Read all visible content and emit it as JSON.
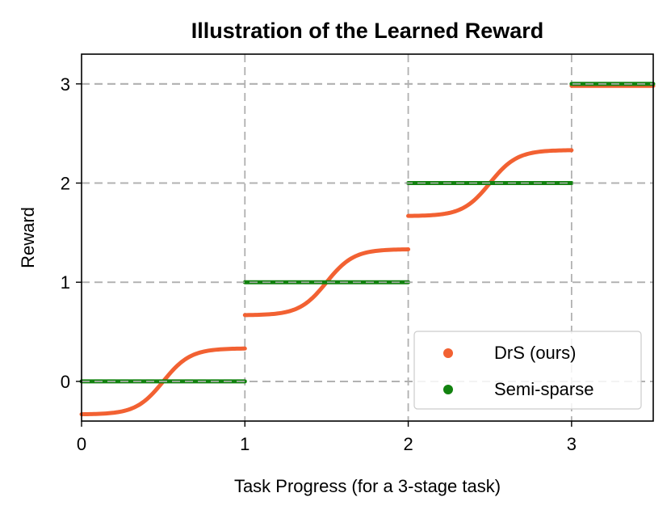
{
  "chart_data": {
    "type": "scatter",
    "title": "Illustration of the Learned Reward",
    "xlabel": "Task Progress (for a 3-stage task)",
    "ylabel": "Reward",
    "xlim": [
      0,
      3.5
    ],
    "ylim": [
      -0.4,
      3.3
    ],
    "xticks": [
      "0",
      "1",
      "2",
      "3"
    ],
    "yticks": [
      "0",
      "1",
      "2",
      "3"
    ],
    "grid": true,
    "grid_style": "dashed",
    "legend_position": "lower-right",
    "series": [
      {
        "name": "DrS (ours)",
        "color": "#f26132",
        "segments": [
          {
            "x_start": 0,
            "x_end": 1,
            "y_low": -0.333,
            "y_high": 0.333,
            "shape": "sigmoid"
          },
          {
            "x_start": 1,
            "x_end": 2,
            "y_low": 0.667,
            "y_high": 1.333,
            "shape": "sigmoid"
          },
          {
            "x_start": 2,
            "x_end": 3,
            "y_low": 1.667,
            "y_high": 2.333,
            "shape": "sigmoid"
          },
          {
            "x_start": 3,
            "x_end": 3.5,
            "y_low": 2.98,
            "y_high": 2.98,
            "shape": "flat"
          }
        ]
      },
      {
        "name": "Semi-sparse",
        "color": "#12820f",
        "segments": [
          {
            "x_start": 0,
            "x_end": 1,
            "y_low": 0,
            "y_high": 0,
            "shape": "flat"
          },
          {
            "x_start": 1,
            "x_end": 2,
            "y_low": 1,
            "y_high": 1,
            "shape": "flat"
          },
          {
            "x_start": 2,
            "x_end": 3,
            "y_low": 2,
            "y_high": 2,
            "shape": "flat"
          },
          {
            "x_start": 3,
            "x_end": 3.5,
            "y_low": 3,
            "y_high": 3,
            "shape": "flat"
          }
        ]
      }
    ]
  }
}
